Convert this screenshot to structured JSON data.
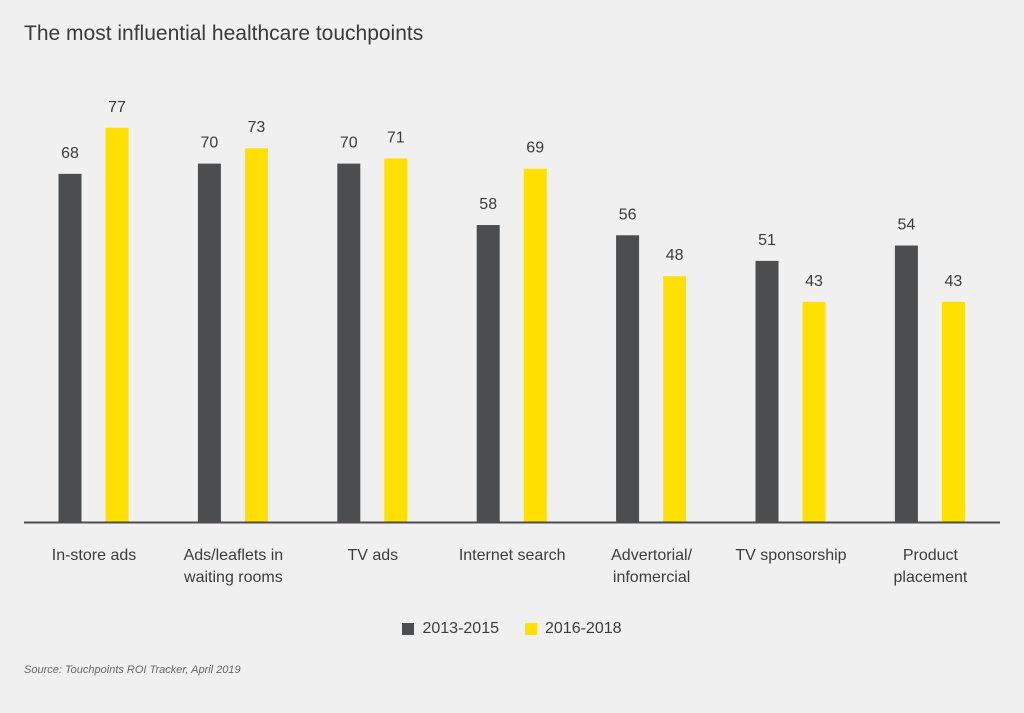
{
  "chart_data": {
    "type": "bar",
    "title": "The most influential healthcare touchpoints",
    "categories": [
      [
        "In-store ads"
      ],
      [
        "Ads/leaflets in",
        "waiting rooms"
      ],
      [
        "TV ads"
      ],
      [
        "Internet search"
      ],
      [
        "Advertorial/",
        "infomercial"
      ],
      [
        "TV sponsorship"
      ],
      [
        "Product",
        "placement"
      ]
    ],
    "series": [
      {
        "name": "2013-2015",
        "color": "#4b4d4e",
        "values": [
          68,
          70,
          70,
          58,
          56,
          51,
          54
        ]
      },
      {
        "name": "2016-2018",
        "color": "#ffe000",
        "values": [
          77,
          73,
          71,
          69,
          48,
          43,
          43
        ]
      }
    ],
    "xlabel": "",
    "ylabel": "",
    "ylim": [
      0,
      77
    ],
    "grid": false,
    "legend_position": "bottom-center",
    "source": "Source: Touchpoints ROI Tracker, April 2019"
  }
}
